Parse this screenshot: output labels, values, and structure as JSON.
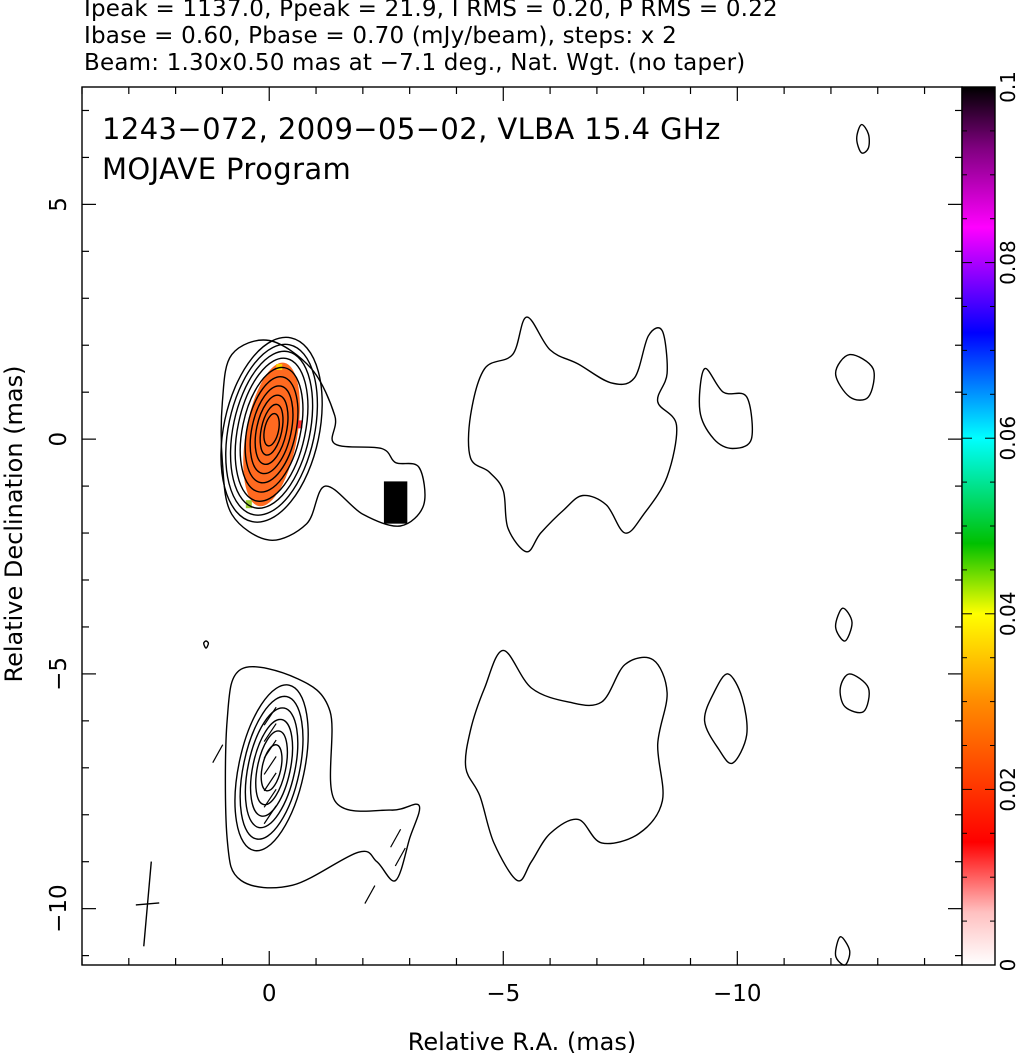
{
  "header": {
    "line1": "Ipeak = 1137.0, Ppeak = 21.9, I RMS = 0.20, P RMS = 0.22",
    "line2": "Ibase = 0.60, Pbase = 0.70 (mJy/beam), steps: x 2",
    "line3": "Beam: 1.30x0.50 mas at −7.1 deg., Nat. Wgt. (no taper)"
  },
  "plot": {
    "title_line1": "1243−072, 2009−05−02, VLBA 15.4 GHz",
    "title_line2": "MOJAVE Program"
  },
  "chart_data": {
    "type": "heatmap",
    "xlabel": "Relative R.A. (mas)",
    "ylabel": "Relative Declination (mas)",
    "xlim": [
      4,
      -14.8
    ],
    "ylim": [
      -11.2,
      7.5
    ],
    "x_ticks": [
      0,
      -5,
      -10
    ],
    "x_tick_labels": [
      "0",
      "−5",
      "−10"
    ],
    "y_ticks": [
      5,
      0,
      -5,
      -10
    ],
    "y_tick_labels": [
      "5",
      "0",
      "−5",
      "−10"
    ],
    "colorbar": {
      "range": [
        0,
        0.1
      ],
      "ticks": [
        0,
        0.02,
        0.04,
        0.06,
        0.08,
        0.1
      ],
      "tick_labels": [
        "0",
        "0.02",
        "0.04",
        "0.06",
        "0.08",
        "0.1"
      ],
      "colors": [
        "#ffffff",
        "#ff0000",
        "#ff8c00",
        "#ffff00",
        "#00c000",
        "#00ffff",
        "#0000ff",
        "#ff00ff",
        "#000000"
      ]
    },
    "beam": {
      "major_mas": 1.3,
      "minor_mas": 0.5,
      "pa_deg": -7.1,
      "center": [
        2.6,
        -9.9
      ]
    },
    "core": {
      "center": [
        -0.05,
        0.2
      ],
      "contour_radii_mas": [
        [
          0.15,
          0.35
        ],
        [
          0.22,
          0.55
        ],
        [
          0.32,
          0.75
        ],
        [
          0.42,
          0.95
        ],
        [
          0.52,
          1.15
        ],
        [
          0.62,
          1.35
        ],
        [
          0.72,
          1.55
        ],
        [
          0.82,
          1.7
        ],
        [
          0.92,
          1.85
        ],
        [
          1.02,
          2.0
        ]
      ],
      "pa_deg": 12
    },
    "polarized_core": {
      "center": [
        -0.05,
        0.1
      ],
      "radii_mas": [
        0.55,
        1.55
      ],
      "pa_deg": 10,
      "color": "#ff6a20"
    },
    "pol_blob": {
      "x": [
        -2.45,
        -2.95
      ],
      "y": [
        -0.9,
        -1.8
      ],
      "color": "#000000"
    },
    "lower_core": {
      "center": [
        -0.05,
        -7.0
      ],
      "contour_radii_mas": [
        [
          0.2,
          0.5
        ],
        [
          0.3,
          0.8
        ],
        [
          0.4,
          1.05
        ],
        [
          0.5,
          1.3
        ],
        [
          0.6,
          1.55
        ],
        [
          0.7,
          1.8
        ]
      ],
      "pa_deg": 12
    },
    "outer_contours_upper": [
      [
        [
          0.8,
          1.8
        ],
        [
          0.0,
          2.1
        ],
        [
          -0.9,
          1.5
        ],
        [
          -1.4,
          0.5
        ],
        [
          -1.4,
          -0.1
        ],
        [
          -2.4,
          -0.2
        ],
        [
          -2.7,
          -0.5
        ],
        [
          -3.2,
          -0.6
        ],
        [
          -3.3,
          -1.4
        ],
        [
          -2.8,
          -1.85
        ],
        [
          -2.0,
          -1.6
        ],
        [
          -1.2,
          -1.0
        ],
        [
          -0.8,
          -1.8
        ],
        [
          0.0,
          -2.15
        ],
        [
          0.8,
          -1.6
        ],
        [
          1.0,
          -0.5
        ],
        [
          1.0,
          0.8
        ]
      ],
      [
        [
          -4.3,
          0.5
        ],
        [
          -4.6,
          1.5
        ],
        [
          -5.2,
          1.8
        ],
        [
          -5.5,
          2.6
        ],
        [
          -6.0,
          1.9
        ],
        [
          -6.6,
          1.6
        ],
        [
          -7.3,
          1.2
        ],
        [
          -7.8,
          1.3
        ],
        [
          -8.1,
          2.2
        ],
        [
          -8.4,
          2.3
        ],
        [
          -8.5,
          1.4
        ],
        [
          -8.3,
          0.8
        ],
        [
          -8.7,
          0.3
        ],
        [
          -8.5,
          -0.8
        ],
        [
          -8.0,
          -1.6
        ],
        [
          -7.6,
          -2.0
        ],
        [
          -7.2,
          -1.4
        ],
        [
          -6.7,
          -1.2
        ],
        [
          -6.3,
          -1.5
        ],
        [
          -5.8,
          -2.0
        ],
        [
          -5.5,
          -2.4
        ],
        [
          -5.1,
          -1.9
        ],
        [
          -5.0,
          -1.1
        ],
        [
          -4.7,
          -0.7
        ],
        [
          -4.3,
          -0.4
        ]
      ],
      [
        [
          -9.3,
          1.5
        ],
        [
          -9.7,
          1.0
        ],
        [
          -10.2,
          0.9
        ],
        [
          -10.3,
          0.0
        ],
        [
          -9.9,
          -0.2
        ],
        [
          -9.5,
          0.0
        ],
        [
          -9.2,
          0.6
        ]
      ],
      [
        [
          -12.4,
          1.8
        ],
        [
          -12.9,
          1.5
        ],
        [
          -12.8,
          0.9
        ],
        [
          -12.4,
          0.9
        ],
        [
          -12.1,
          1.4
        ]
      ],
      [
        [
          -12.65,
          6.7
        ],
        [
          -12.8,
          6.5
        ],
        [
          -12.8,
          6.2
        ],
        [
          -12.65,
          6.1
        ],
        [
          -12.55,
          6.4
        ]
      ]
    ],
    "outer_contours_lower": [
      [
        [
          0.6,
          -4.9
        ],
        [
          -0.6,
          -5.1
        ],
        [
          -1.3,
          -5.8
        ],
        [
          -1.4,
          -7.7
        ],
        [
          -2.6,
          -7.9
        ],
        [
          -3.2,
          -7.8
        ],
        [
          -3.0,
          -8.5
        ],
        [
          -2.7,
          -9.4
        ],
        [
          -2.3,
          -9.0
        ],
        [
          -1.9,
          -8.8
        ],
        [
          -0.5,
          -9.5
        ],
        [
          0.6,
          -9.4
        ],
        [
          0.9,
          -8.5
        ],
        [
          0.9,
          -6.0
        ]
      ],
      [
        [
          -4.3,
          -6.2
        ],
        [
          -4.6,
          -5.3
        ],
        [
          -5.0,
          -4.5
        ],
        [
          -5.6,
          -5.3
        ],
        [
          -6.4,
          -5.6
        ],
        [
          -7.1,
          -5.6
        ],
        [
          -7.6,
          -4.8
        ],
        [
          -8.2,
          -4.7
        ],
        [
          -8.5,
          -5.4
        ],
        [
          -8.3,
          -6.5
        ],
        [
          -8.4,
          -7.7
        ],
        [
          -7.9,
          -8.4
        ],
        [
          -7.1,
          -8.6
        ],
        [
          -6.6,
          -8.1
        ],
        [
          -6.0,
          -8.4
        ],
        [
          -5.6,
          -9.0
        ],
        [
          -5.3,
          -9.4
        ],
        [
          -4.8,
          -8.6
        ],
        [
          -4.5,
          -7.6
        ],
        [
          -4.2,
          -7.0
        ]
      ],
      [
        [
          -9.5,
          -5.4
        ],
        [
          -9.8,
          -5.0
        ],
        [
          -10.1,
          -5.5
        ],
        [
          -10.2,
          -6.3
        ],
        [
          -9.9,
          -6.9
        ],
        [
          -9.6,
          -6.6
        ],
        [
          -9.3,
          -6.0
        ]
      ],
      [
        [
          -12.4,
          -5.0
        ],
        [
          -12.8,
          -5.3
        ],
        [
          -12.7,
          -5.8
        ],
        [
          -12.3,
          -5.7
        ],
        [
          -12.2,
          -5.3
        ]
      ],
      [
        [
          -12.25,
          -3.6
        ],
        [
          -12.45,
          -3.9
        ],
        [
          -12.3,
          -4.3
        ],
        [
          -12.1,
          -4.0
        ]
      ],
      [
        [
          -12.2,
          -10.6
        ],
        [
          -12.4,
          -10.9
        ],
        [
          -12.3,
          -11.2
        ],
        [
          -12.1,
          -11.0
        ]
      ]
    ]
  }
}
